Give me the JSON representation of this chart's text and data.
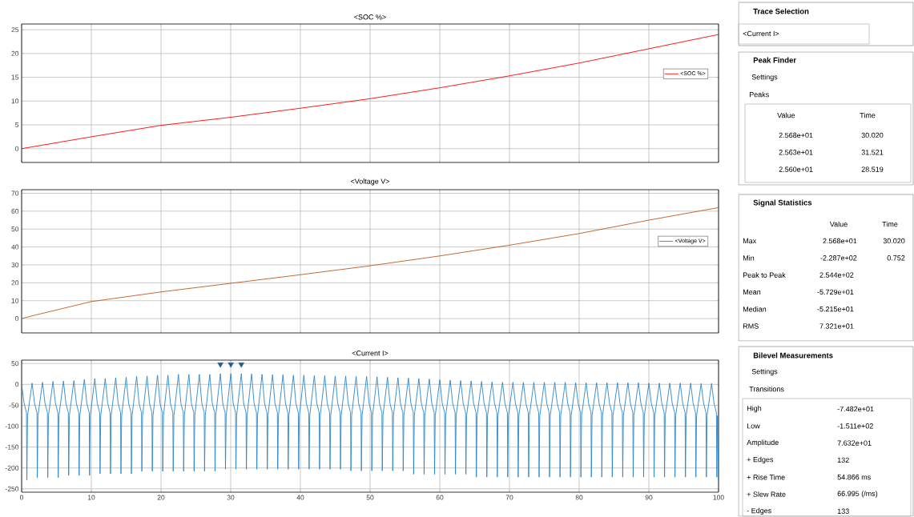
{
  "chart_data": [
    {
      "type": "line",
      "title": "<SOC %>",
      "x": [
        0,
        10,
        20,
        30,
        40,
        50,
        60,
        70,
        80,
        90,
        100
      ],
      "series": [
        {
          "name": "<SOC %>",
          "color": "#ff0000",
          "values": [
            0,
            2.5,
            4.9,
            6.6,
            8.5,
            10.5,
            12.8,
            15.3,
            18,
            21,
            24
          ]
        }
      ],
      "xlim": [
        0,
        100
      ],
      "ylim": [
        -2.9,
        26.2
      ],
      "xticks": [
        0,
        10,
        20,
        30,
        40,
        50,
        60,
        70,
        80,
        90,
        100
      ],
      "yticks": [
        0,
        5,
        10,
        15,
        20,
        25
      ],
      "grid": true,
      "legend": "right",
      "tick_labels": "y"
    },
    {
      "type": "line",
      "title": "<Voltage V>",
      "x": [
        0,
        2,
        10,
        20,
        30,
        40,
        50,
        60,
        70,
        80,
        90,
        100
      ],
      "series": [
        {
          "name": "<Voltage V>",
          "color": "#c0571f",
          "values": [
            0,
            2,
            9.5,
            14.9,
            19.7,
            24.5,
            29.5,
            35,
            41,
            47.5,
            55,
            62
          ]
        }
      ],
      "xlim": [
        0,
        100
      ],
      "ylim": [
        -8,
        72
      ],
      "xticks": [
        0,
        10,
        20,
        30,
        40,
        50,
        60,
        70,
        80,
        90,
        100
      ],
      "yticks": [
        0,
        10,
        20,
        30,
        40,
        50,
        60,
        70
      ],
      "grid": true,
      "legend": "right",
      "tick_labels": "y"
    },
    {
      "type": "line",
      "title": "<Current I>",
      "series": [
        {
          "color": "#2a86c9",
          "x": [
            0,
            0.35,
            0.7,
            0.752,
            0.85,
            1.5,
            1.85,
            2.2,
            2.25,
            2.35,
            3,
            3.35,
            3.7,
            3.75,
            3.85,
            4.5,
            4.85,
            5.2,
            5.25,
            5.35,
            6,
            6.35,
            6.7,
            6.75,
            6.85,
            7.5,
            7.85,
            8.2,
            8.25,
            8.35,
            9,
            9.35,
            9.7,
            9.75,
            9.85,
            10.5,
            10.85,
            11.2,
            11.25,
            11.35,
            12,
            12.35,
            12.7,
            12.75,
            12.85,
            13.5,
            13.85,
            14.2,
            14.25,
            14.35,
            15,
            15.35,
            15.7,
            15.75,
            15.85,
            16.5,
            16.85,
            17.2,
            17.25,
            17.35,
            18,
            18.35,
            18.7,
            18.75,
            18.85,
            19.5,
            19.85,
            20.2,
            20.25,
            20.35,
            21,
            21.35,
            21.7,
            21.75,
            21.85,
            22.5,
            22.85,
            23.2,
            23.25,
            23.35,
            24,
            24.35,
            24.7,
            24.75,
            24.85,
            25.5,
            25.85,
            26.2,
            26.25,
            26.35,
            27,
            27.35,
            27.7,
            27.75,
            27.85,
            28.519,
            28.85,
            29.2,
            29.25,
            29.35,
            30.02,
            30.35,
            30.7,
            30.75,
            30.85,
            31.521,
            31.85,
            32.2,
            32.25,
            32.35,
            33,
            33.35,
            33.7,
            33.75,
            33.85,
            34.5,
            34.85,
            35.2,
            35.25,
            35.35,
            36,
            36.35,
            36.7,
            36.75,
            36.85,
            37.5,
            37.85,
            38.2,
            38.25,
            38.35,
            39,
            39.35,
            39.7,
            39.75,
            39.85,
            40.5,
            40.85,
            41.2,
            41.25,
            41.35,
            42,
            42.35,
            42.7,
            42.75,
            42.85,
            43.5,
            43.85,
            44.2,
            44.25,
            44.35,
            45,
            45.35,
            45.7,
            45.75,
            45.85,
            46.5,
            46.85,
            47.2,
            47.25,
            47.35,
            48,
            48.35,
            48.7,
            48.75,
            48.85,
            49.5,
            49.85,
            50.2,
            50.25,
            50.35,
            51,
            51.35,
            51.7,
            51.75,
            51.85,
            52.5,
            52.85,
            53.2,
            53.25,
            53.35,
            54,
            54.35,
            54.7,
            54.75,
            54.85,
            55.5,
            55.85,
            56.2,
            56.25,
            56.35,
            57,
            57.35,
            57.7,
            57.75,
            57.85,
            58.5,
            58.85,
            59.2,
            59.25,
            59.35,
            60,
            60.35,
            60.7,
            60.75,
            60.85,
            61.5,
            61.85,
            62.2,
            62.25,
            62.35,
            63,
            63.35,
            63.7,
            63.75,
            63.85,
            64.5,
            64.85,
            65.2,
            65.25,
            65.35,
            66,
            66.35,
            66.7,
            66.75,
            66.85,
            67.5,
            67.85,
            68.2,
            68.25,
            68.35,
            69,
            69.35,
            69.7,
            69.75,
            69.85,
            70.5,
            70.85,
            71.2,
            71.25,
            71.35,
            72,
            72.35,
            72.7,
            72.75,
            72.85,
            73.5,
            73.85,
            74.2,
            74.25,
            74.35,
            75,
            75.35,
            75.7,
            75.75,
            75.85,
            76.5,
            76.85,
            77.2,
            77.25,
            77.35,
            78,
            78.35,
            78.7,
            78.75,
            78.85,
            79.5,
            79.85,
            80.2,
            80.25,
            80.35,
            81,
            81.35,
            81.7,
            81.75,
            81.85,
            82.5,
            82.85,
            83.2,
            83.25,
            83.35,
            84,
            84.35,
            84.7,
            84.75,
            84.85,
            85.5,
            85.85,
            86.2,
            86.25,
            86.35,
            87,
            87.35,
            87.7,
            87.75,
            87.85,
            88.5,
            88.85,
            89.2,
            89.25,
            89.35,
            90,
            90.35,
            90.7,
            90.75,
            90.85,
            91.5,
            91.85,
            92.2,
            92.25,
            92.35,
            93,
            93.35,
            93.7,
            93.75,
            93.85,
            94.5,
            94.85,
            95.2,
            95.25,
            95.35,
            96,
            96.35,
            96.7,
            96.75,
            96.85,
            97.5,
            97.85,
            98.2,
            98.25,
            98.35,
            99,
            99.35,
            99.7,
            99.75,
            99.85,
            100
          ],
          "values": [
            0,
            -45,
            -68,
            -228.7,
            -75,
            3,
            -45,
            -68,
            -223,
            -75,
            5,
            -45,
            -68,
            -223,
            -75,
            7,
            -45,
            -68,
            -223,
            -75,
            8,
            -45,
            -68,
            -218,
            -75,
            9,
            -45,
            -68,
            -218,
            -75,
            12,
            -45,
            -68,
            -218,
            -75,
            14,
            -45,
            -68,
            -214,
            -75,
            14,
            -45,
            -68,
            -214,
            -75,
            16,
            -45,
            -68,
            -214,
            -75,
            17,
            -45,
            -68,
            -214,
            -75,
            19,
            -45,
            -68,
            -208,
            -75,
            20,
            -45,
            -68,
            -208,
            -75,
            22,
            -45,
            -68,
            -208,
            -75,
            22,
            -45,
            -68,
            -208,
            -75,
            24,
            -45,
            -68,
            -208,
            -75,
            24,
            -45,
            -68,
            -208,
            -75,
            24,
            -45,
            -68,
            -208,
            -75,
            24,
            -45,
            -68,
            -208,
            -75,
            25.6,
            -45,
            -68,
            -203,
            -75,
            25.68,
            -45,
            -68,
            -203,
            -75,
            25.63,
            -45,
            -68,
            -203,
            -75,
            25,
            -45,
            -68,
            -203,
            -75,
            24,
            -45,
            -68,
            -203,
            -75,
            23,
            -45,
            -68,
            -203,
            -75,
            23,
            -45,
            -68,
            -203,
            -75,
            22,
            -45,
            -68,
            -203,
            -75,
            22,
            -45,
            -68,
            -203,
            -75,
            21,
            -45,
            -68,
            -203,
            -75,
            21,
            -45,
            -68,
            -203,
            -75,
            20,
            -45,
            -68,
            -203,
            -75,
            20,
            -45,
            -68,
            -207,
            -75,
            19,
            -45,
            -68,
            -207,
            -75,
            19,
            -45,
            -68,
            -207,
            -75,
            18,
            -45,
            -68,
            -207,
            -75,
            17,
            -45,
            -68,
            -207,
            -75,
            16,
            -45,
            -68,
            -207,
            -75,
            15,
            -45,
            -68,
            -215,
            -75,
            14,
            -45,
            -68,
            -215,
            -75,
            13,
            -45,
            -68,
            -215,
            -75,
            11,
            -45,
            -68,
            -215,
            -75,
            10,
            -45,
            -68,
            -215,
            -75,
            9,
            -45,
            -68,
            -215,
            -75,
            8,
            -45,
            -68,
            -222,
            -75,
            7,
            -45,
            -68,
            -222,
            -75,
            6,
            -45,
            -68,
            -222,
            -75,
            5,
            -45,
            -68,
            -222,
            -75,
            5,
            -45,
            -68,
            -222,
            -75,
            5,
            -45,
            -68,
            -222,
            -75,
            5,
            -45,
            -68,
            -222,
            -75,
            5,
            -45,
            -68,
            -222,
            -75,
            5,
            -45,
            -68,
            -222,
            -75,
            5,
            -45,
            -68,
            -222,
            -75,
            4,
            -45,
            -68,
            -222,
            -75,
            4,
            -45,
            -68,
            -222,
            -75,
            4,
            -45,
            -68,
            -222,
            -75,
            4,
            -45,
            -68,
            -222,
            -75,
            4,
            -45,
            -68,
            -222,
            -75,
            4,
            -45,
            -68,
            -222,
            -75,
            4,
            -45,
            -68,
            -222,
            -75,
            3,
            -45,
            -68,
            -222,
            -75,
            3,
            -45,
            -68,
            -222,
            -75,
            3,
            -45,
            -68,
            -222,
            -75,
            3,
            -45,
            -68,
            -222,
            -75,
            3,
            -45,
            -68,
            -222,
            -75,
            2,
            -45,
            -68,
            -222,
            -75,
            2,
            -45,
            -68,
            -222,
            -75,
            -230
          ]
        },
        {
          "type": "scatter",
          "marker": "triangle",
          "color": "#1d5f91",
          "x": [
            28.519,
            30.02,
            31.521
          ],
          "values": [
            48,
            48,
            48
          ]
        }
      ],
      "xlim": [
        0,
        100
      ],
      "ylim": [
        -258,
        58
      ],
      "xticks": [
        0,
        10,
        20,
        30,
        40,
        50,
        60,
        70,
        80,
        90,
        100
      ],
      "yticks": [
        -250,
        -200,
        -150,
        -100,
        -50,
        0,
        50
      ],
      "grid": true,
      "legend": false
    },
    {
      "type": "other",
      "title": "Trace Selection",
      "annotations": [
        "<Current I>"
      ]
    },
    {
      "type": "other",
      "title": "Peak Finder",
      "annotations": [
        "Settings",
        "Peaks",
        "Value",
        "Time",
        "2.568e+01",
        "30.020",
        "2.563e+01",
        "31.521",
        "2.560e+01",
        "28.519"
      ]
    },
    {
      "type": "other",
      "title": "Signal Statistics",
      "annotations": [
        "Value",
        "Time",
        "Max",
        "2.568e+01",
        "30.020",
        "Min",
        "-2.287e+02",
        "0.752",
        "Peak to Peak",
        "2.544e+02",
        "Mean",
        "-5.729e+01",
        "Median",
        "-5.215e+01",
        "RMS",
        "7.321e+01"
      ]
    },
    {
      "type": "other",
      "title": "Bilevel Measurements",
      "annotations": [
        "Settings",
        "Transitions",
        "High",
        "-7.482e+01",
        "Low",
        "-1.511e+02",
        "Amplitude",
        "7.632e+01",
        "+ Edges",
        "132",
        "+ Rise Time",
        "54.866 ms",
        "+ Slew Rate",
        "66.995 (/ms)",
        "- Edges",
        "133"
      ]
    }
  ]
}
